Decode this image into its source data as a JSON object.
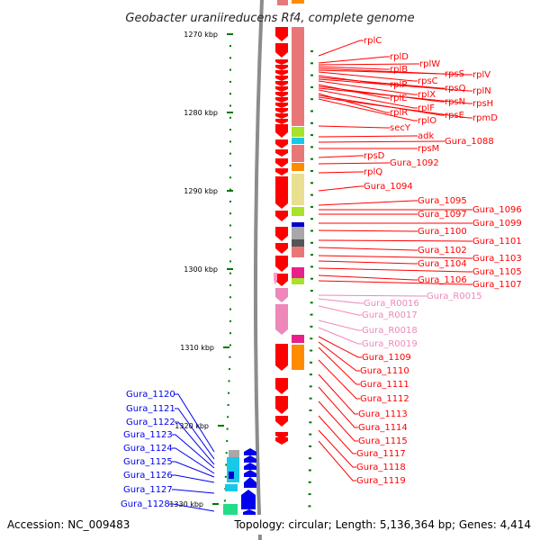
{
  "title": "Geobacter uraniireducens Rf4, complete genome",
  "accession": "Accession: NC_009483",
  "topology": "Topology: circular; Length: 5,136,364 bp; Genes: 4,414",
  "colors": {
    "protein_gene": "#ff0000",
    "rna_gene": "#ee88bb",
    "minus_strand_gene": "#0000ee",
    "cog_pink": "#e87878",
    "cog_orange": "#ff8c00",
    "cog_green": "#a8e22a",
    "cog_cyan": "#18c8e8",
    "cog_gray": "#a8a8a8",
    "cog_khaki": "#e8e090",
    "cog_magenta": "#e8208c",
    "tick": "#007700",
    "backbone": "#8c8c8c"
  },
  "scale": {
    "unit": "kbp",
    "ticks": [
      {
        "kbp": 1270,
        "label": "1270 kbp"
      },
      {
        "kbp": 1280,
        "label": "1280 kbp"
      },
      {
        "kbp": 1290,
        "label": "1290 kbp"
      },
      {
        "kbp": 1300,
        "label": "1300 kbp"
      },
      {
        "kbp": 1310,
        "label": "1310 kbp"
      },
      {
        "kbp": 1320,
        "label": "1320 kbp"
      },
      {
        "kbp": 1330,
        "label": "1330 kbp"
      }
    ]
  },
  "plus_labels": [
    {
      "text": "rplC",
      "kind": "protein"
    },
    {
      "text": "rplD",
      "kind": "protein"
    },
    {
      "text": "rplW",
      "kind": "protein"
    },
    {
      "text": "rplB",
      "kind": "protein"
    },
    {
      "text": "rpsS",
      "kind": "protein"
    },
    {
      "text": "rplV",
      "kind": "protein"
    },
    {
      "text": "rpsC",
      "kind": "protein"
    },
    {
      "text": "rplP",
      "kind": "protein"
    },
    {
      "text": "rpsQ",
      "kind": "protein"
    },
    {
      "text": "rplN",
      "kind": "protein"
    },
    {
      "text": "rplX",
      "kind": "protein"
    },
    {
      "text": "rplE",
      "kind": "protein"
    },
    {
      "text": "rpsN",
      "kind": "protein"
    },
    {
      "text": "rpsH",
      "kind": "protein"
    },
    {
      "text": "rplF",
      "kind": "protein"
    },
    {
      "text": "rplR",
      "kind": "protein"
    },
    {
      "text": "rpsE",
      "kind": "protein"
    },
    {
      "text": "rpmD",
      "kind": "protein"
    },
    {
      "text": "rplO",
      "kind": "protein"
    },
    {
      "text": "secY",
      "kind": "protein"
    },
    {
      "text": "adk",
      "kind": "protein"
    },
    {
      "text": "Gura_1088",
      "kind": "protein"
    },
    {
      "text": "rpsM",
      "kind": "protein"
    },
    {
      "text": "rpsD",
      "kind": "protein"
    },
    {
      "text": "Gura_1092",
      "kind": "protein"
    },
    {
      "text": "rplQ",
      "kind": "protein"
    },
    {
      "text": "Gura_1094",
      "kind": "protein"
    },
    {
      "text": "Gura_1095",
      "kind": "protein"
    },
    {
      "text": "Gura_1096",
      "kind": "protein"
    },
    {
      "text": "Gura_1097",
      "kind": "protein"
    },
    {
      "text": "Gura_1099",
      "kind": "protein"
    },
    {
      "text": "Gura_1100",
      "kind": "protein"
    },
    {
      "text": "Gura_1101",
      "kind": "protein"
    },
    {
      "text": "Gura_1102",
      "kind": "protein"
    },
    {
      "text": "Gura_1103",
      "kind": "protein"
    },
    {
      "text": "Gura_1104",
      "kind": "protein"
    },
    {
      "text": "Gura_1105",
      "kind": "protein"
    },
    {
      "text": "Gura_1106",
      "kind": "protein"
    },
    {
      "text": "Gura_1107",
      "kind": "protein"
    },
    {
      "text": "Gura_R0015",
      "kind": "rna"
    },
    {
      "text": "Gura_R0016",
      "kind": "rna"
    },
    {
      "text": "Gura_R0017",
      "kind": "rna"
    },
    {
      "text": "Gura_R0018",
      "kind": "rna"
    },
    {
      "text": "Gura_R0019",
      "kind": "rna"
    },
    {
      "text": "Gura_1109",
      "kind": "protein"
    },
    {
      "text": "Gura_1110",
      "kind": "protein"
    },
    {
      "text": "Gura_1111",
      "kind": "protein"
    },
    {
      "text": "Gura_1112",
      "kind": "protein"
    },
    {
      "text": "Gura_1113",
      "kind": "protein"
    },
    {
      "text": "Gura_1114",
      "kind": "protein"
    },
    {
      "text": "Gura_1115",
      "kind": "protein"
    },
    {
      "text": "Gura_1117",
      "kind": "protein"
    },
    {
      "text": "Gura_1118",
      "kind": "protein"
    },
    {
      "text": "Gura_1119",
      "kind": "protein"
    }
  ],
  "minus_labels": [
    {
      "text": "Gura_1120"
    },
    {
      "text": "Gura_1121"
    },
    {
      "text": "Gura_1122"
    },
    {
      "text": "Gura_1123"
    },
    {
      "text": "Gura_1124"
    },
    {
      "text": "Gura_1125"
    },
    {
      "text": "Gura_1126"
    },
    {
      "text": "Gura_1127"
    },
    {
      "text": "Gura_1128"
    }
  ]
}
